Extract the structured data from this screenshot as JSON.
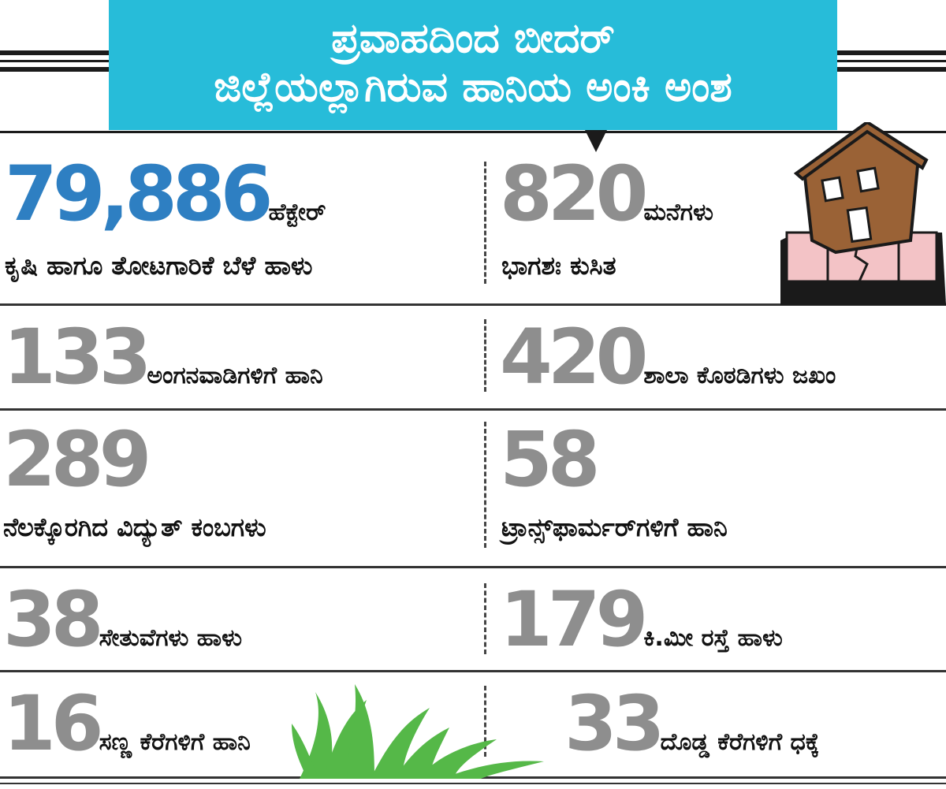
{
  "title": {
    "line1": "ಪ್ರವಾಹದಿಂದ ಬೀದರ್",
    "line2": "ಜಿಲ್ಲೆಯಲ್ಲಾಗಿರುವ ಹಾನಿಯ ಅಂಕಿ ಅಂಶ"
  },
  "colors": {
    "title_bg": "#27bcd9",
    "highlight_number": "#2e7fc2",
    "number_grey": "#8e8e8e",
    "house_brown": "#9a6236",
    "house_base_pink": "#f3c3c6",
    "grass_green": "#55b848"
  },
  "stats": {
    "s1": {
      "value": "79,886",
      "unit": "ಹೆಕ್ಟೇರ್",
      "desc": "ಕೃಷಿ ಹಾಗೂ ತೋಟಗಾರಿಕೆ ಬೆಳೆ ಹಾಳು"
    },
    "s2": {
      "value": "820",
      "unit": "ಮನೆಗಳು",
      "desc": "ಭಾಗಶಃ ಕುಸಿತ"
    },
    "s3": {
      "value": "133",
      "desc": "ಅಂಗನವಾಡಿಗಳಿಗೆ ಹಾನಿ"
    },
    "s4": {
      "value": "420",
      "desc": "ಶಾಲಾ ಕೊಠಡಿಗಳು ಜಖಂ"
    },
    "s5": {
      "value": "289",
      "desc": "ನೆಲಕ್ಕೊರಗಿದ ವಿದ್ಯುತ್ ಕಂಬಗಳು"
    },
    "s6": {
      "value": "58",
      "desc": "ಟ್ರಾನ್ಸ್‌ಫಾರ್ಮರ್‌ಗಳಿಗೆ ಹಾನಿ"
    },
    "s7": {
      "value": "38",
      "desc": "ಸೇತುವೆಗಳು ಹಾಳು"
    },
    "s8": {
      "value": "179",
      "desc": "ಕಿ.ಮೀ ರಸ್ತೆ ಹಾಳು"
    },
    "s9": {
      "value": "16",
      "desc": "ಸಣ್ಣ ಕೆರೆಗಳಿಗೆ ಹಾನಿ"
    },
    "s10": {
      "value": "33",
      "desc": "ದೊಡ್ಡ ಕೆರೆಗಳಿಗೆ ಧಕ್ಕೆ"
    }
  },
  "illustrations": {
    "house": "damaged-house-icon",
    "grass": "grass-icon"
  }
}
